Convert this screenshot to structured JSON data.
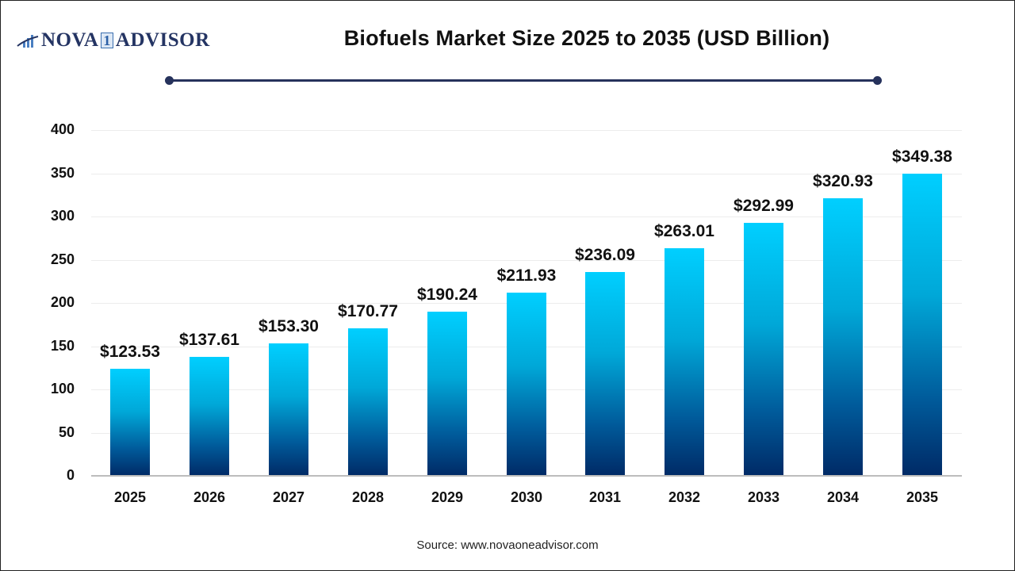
{
  "logo": {
    "part1": "NOVA",
    "part2": "1",
    "part3": "ADVISOR"
  },
  "title": "Biofuels Market Size 2025 to 2035 (USD Billion)",
  "source": "Source: www.novaoneadvisor.com",
  "colors": {
    "bar_top": "#00cfff",
    "bar_bottom": "#002a66",
    "title_line": "#26325c",
    "logo": "#243463"
  },
  "chart_data": {
    "type": "bar",
    "title": "Biofuels Market Size 2025 to 2035 (USD Billion)",
    "xlabel": "",
    "ylabel": "",
    "categories": [
      "2025",
      "2026",
      "2027",
      "2028",
      "2029",
      "2030",
      "2031",
      "2032",
      "2033",
      "2034",
      "2035"
    ],
    "values": [
      123.53,
      137.61,
      153.3,
      170.77,
      190.24,
      211.93,
      236.09,
      263.01,
      292.99,
      320.93,
      349.38
    ],
    "value_labels": [
      "$123.53",
      "$137.61",
      "$153.30",
      "$170.77",
      "$190.24",
      "$211.93",
      "$236.09",
      "$263.01",
      "$292.99",
      "$320.93",
      "$349.38"
    ],
    "ylim": [
      0,
      400
    ],
    "yticks": [
      "0",
      "50",
      "100",
      "150",
      "200",
      "250",
      "300",
      "350",
      "400"
    ],
    "grid": true,
    "legend": null
  }
}
